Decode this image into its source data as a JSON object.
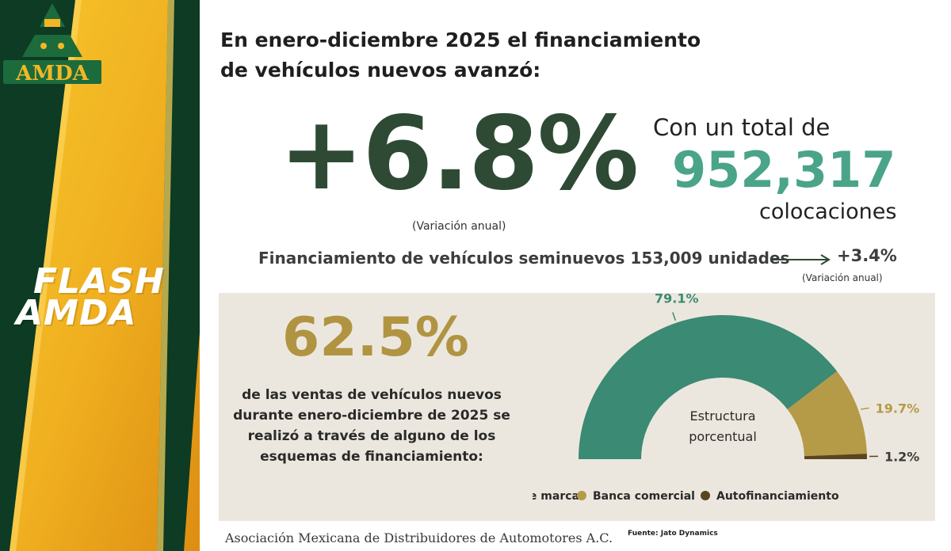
{
  "sidebar": {
    "logo_text": "AMDA",
    "flash_line1": "FLASH",
    "flash_line2": "AMDA",
    "colors": {
      "green": "#0d3b23",
      "gold": "#f0b320"
    }
  },
  "headline": "En enero-diciembre 2025 el financiamiento de vehículos nuevos avanzó:",
  "new_vehicles": {
    "change": "+6.8%",
    "change_note": "(Variación anual)",
    "total_prefix": "Con un total de",
    "total_value": "952,317",
    "total_suffix": "colocaciones"
  },
  "used_vehicles": {
    "text": "Financiamiento de vehículos seminuevos 153,009 unidades",
    "change": "+3.4%",
    "change_note": "(Variación anual)"
  },
  "share": {
    "value": "62.5%",
    "description": "de las ventas de vehículos nuevos durante enero-diciembre de 2025 se realizó a través de alguno de los esquemas de financiamiento:"
  },
  "chart_data": {
    "type": "pie",
    "title": "Estructura porcentual",
    "categories": [
      "Financieras de marca",
      "Banca comercial",
      "Autofinanciamiento"
    ],
    "values": [
      79.1,
      19.7,
      1.2
    ],
    "labels": [
      "79.1%",
      "19.7%",
      "1.2%"
    ],
    "colors": [
      "#3b8a73",
      "#b59a47",
      "#5a4520"
    ],
    "legend_position": "bottom"
  },
  "footer": {
    "association": "Asociación Mexicana de Distribuidores de Automotores A.C.",
    "source": "Fuente: Jato Dynamics"
  }
}
